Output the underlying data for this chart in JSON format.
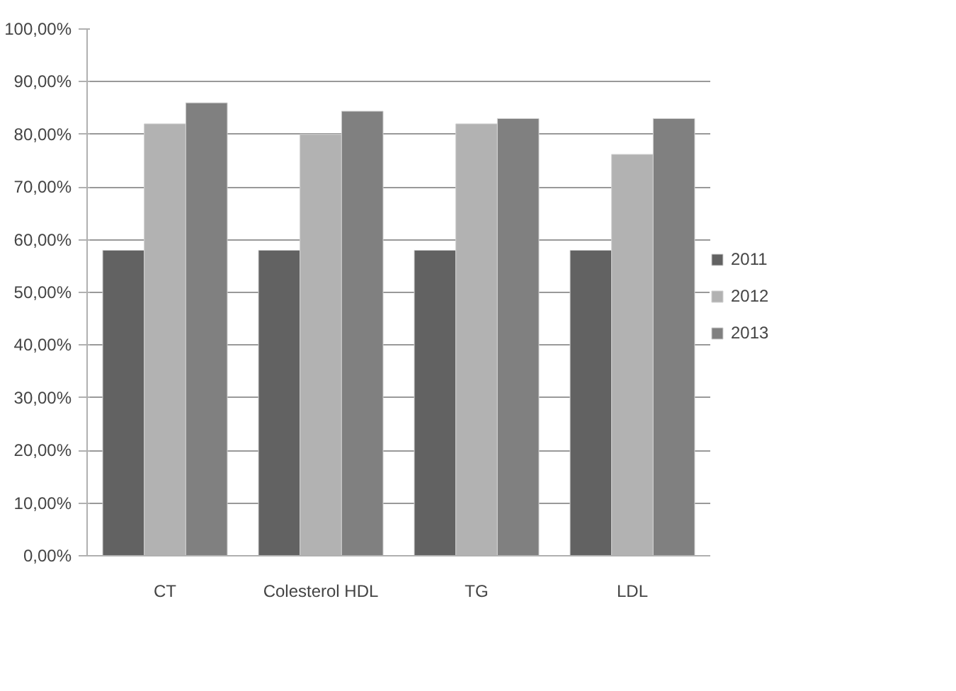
{
  "chart_data": {
    "type": "bar",
    "categories": [
      "CT",
      "Colesterol HDL",
      "TG",
      "LDL"
    ],
    "series": [
      {
        "name": "2011",
        "color": "#626262",
        "values": [
          58,
          58,
          58,
          58
        ]
      },
      {
        "name": "2012",
        "color": "#b2b2b2",
        "values": [
          82,
          80,
          82,
          76.2
        ]
      },
      {
        "name": "2013",
        "color": "#808080",
        "values": [
          86,
          84.4,
          83,
          83
        ]
      }
    ],
    "ylim": [
      0,
      100
    ],
    "yticks": [
      {
        "value": 0,
        "label": "0,00%"
      },
      {
        "value": 10,
        "label": "10,00%"
      },
      {
        "value": 20,
        "label": "20,00%"
      },
      {
        "value": 30,
        "label": "30,00%"
      },
      {
        "value": 40,
        "label": "40,00%"
      },
      {
        "value": 50,
        "label": "50,00%"
      },
      {
        "value": 60,
        "label": "60,00%"
      },
      {
        "value": 70,
        "label": "70,00%"
      },
      {
        "value": 80,
        "label": "80,00%"
      },
      {
        "value": 90,
        "label": "90,00%"
      },
      {
        "value": 100,
        "label": "100,00%"
      }
    ],
    "grid": "y",
    "legend": "right"
  }
}
